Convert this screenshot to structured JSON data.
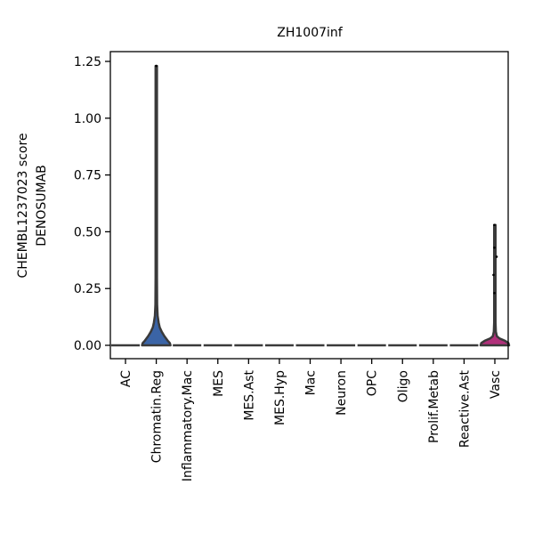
{
  "chart_data": {
    "type": "violin",
    "title": "ZH1007inf",
    "ylabel_line1": "CHEMBL1237023 score",
    "ylabel_line2": "DENOSUMAB",
    "xlabel": "",
    "ylim": [
      -0.06,
      1.29
    ],
    "yticks": [
      0.0,
      0.25,
      0.5,
      0.75,
      1.0,
      1.25
    ],
    "ytick_labels": [
      "0.00",
      "0.25",
      "0.50",
      "0.75",
      "1.00",
      "1.25"
    ],
    "categories": [
      "AC",
      "Chromatin.Reg",
      "Inflammatory.Mac",
      "MES",
      "MES.Ast",
      "MES.Hyp",
      "Mac",
      "Neuron",
      "OPC",
      "Oligo",
      "Prolif.Metab",
      "Reactive.Ast",
      "Vasc"
    ],
    "violins": [
      {
        "category": "AC",
        "max": 0.0,
        "color": "#9a9a9a",
        "profile": []
      },
      {
        "category": "Chromatin.Reg",
        "max": 1.23,
        "color": "#3b64a6",
        "profile": [
          [
            0.0,
            0.42
          ],
          [
            0.01,
            0.4
          ],
          [
            0.02,
            0.34
          ],
          [
            0.04,
            0.24
          ],
          [
            0.06,
            0.16
          ],
          [
            0.08,
            0.1
          ],
          [
            0.1,
            0.07
          ],
          [
            0.13,
            0.04
          ],
          [
            0.18,
            0.025
          ],
          [
            0.3,
            0.02
          ],
          [
            1.23,
            0.02
          ]
        ]
      },
      {
        "category": "Inflammatory.Mac",
        "max": 0.0,
        "color": "#9a9a9a",
        "profile": []
      },
      {
        "category": "MES",
        "max": 0.0,
        "color": "#9a9a9a",
        "profile": []
      },
      {
        "category": "MES.Ast",
        "max": 0.0,
        "color": "#9a9a9a",
        "profile": []
      },
      {
        "category": "MES.Hyp",
        "max": 0.0,
        "color": "#9a9a9a",
        "profile": []
      },
      {
        "category": "Mac",
        "max": 0.0,
        "color": "#9a9a9a",
        "profile": []
      },
      {
        "category": "Neuron",
        "max": 0.0,
        "color": "#9a9a9a",
        "profile": []
      },
      {
        "category": "OPC",
        "max": 0.0,
        "color": "#9a9a9a",
        "profile": []
      },
      {
        "category": "Oligo",
        "max": 0.0,
        "color": "#9a9a9a",
        "profile": []
      },
      {
        "category": "Prolif.Metab",
        "max": 0.0,
        "color": "#9a9a9a",
        "profile": []
      },
      {
        "category": "Reactive.Ast",
        "max": 0.0,
        "color": "#9a9a9a",
        "profile": []
      },
      {
        "category": "Vasc",
        "max": 0.53,
        "color": "#b0307a",
        "profile": [
          [
            0.0,
            0.42
          ],
          [
            0.01,
            0.4
          ],
          [
            0.02,
            0.3
          ],
          [
            0.03,
            0.14
          ],
          [
            0.04,
            0.06
          ],
          [
            0.06,
            0.03
          ],
          [
            0.1,
            0.02
          ],
          [
            0.53,
            0.02
          ]
        ]
      }
    ],
    "points": [
      {
        "category": "Chromatin.Reg",
        "y": 1.23
      },
      {
        "category": "Vasc",
        "y": 0.53
      },
      {
        "category": "Vasc",
        "y": 0.43
      },
      {
        "category": "Vasc",
        "y": 0.39
      },
      {
        "category": "Vasc",
        "y": 0.31
      },
      {
        "category": "Vasc",
        "y": 0.23
      }
    ],
    "grid": false,
    "legend": "none"
  }
}
